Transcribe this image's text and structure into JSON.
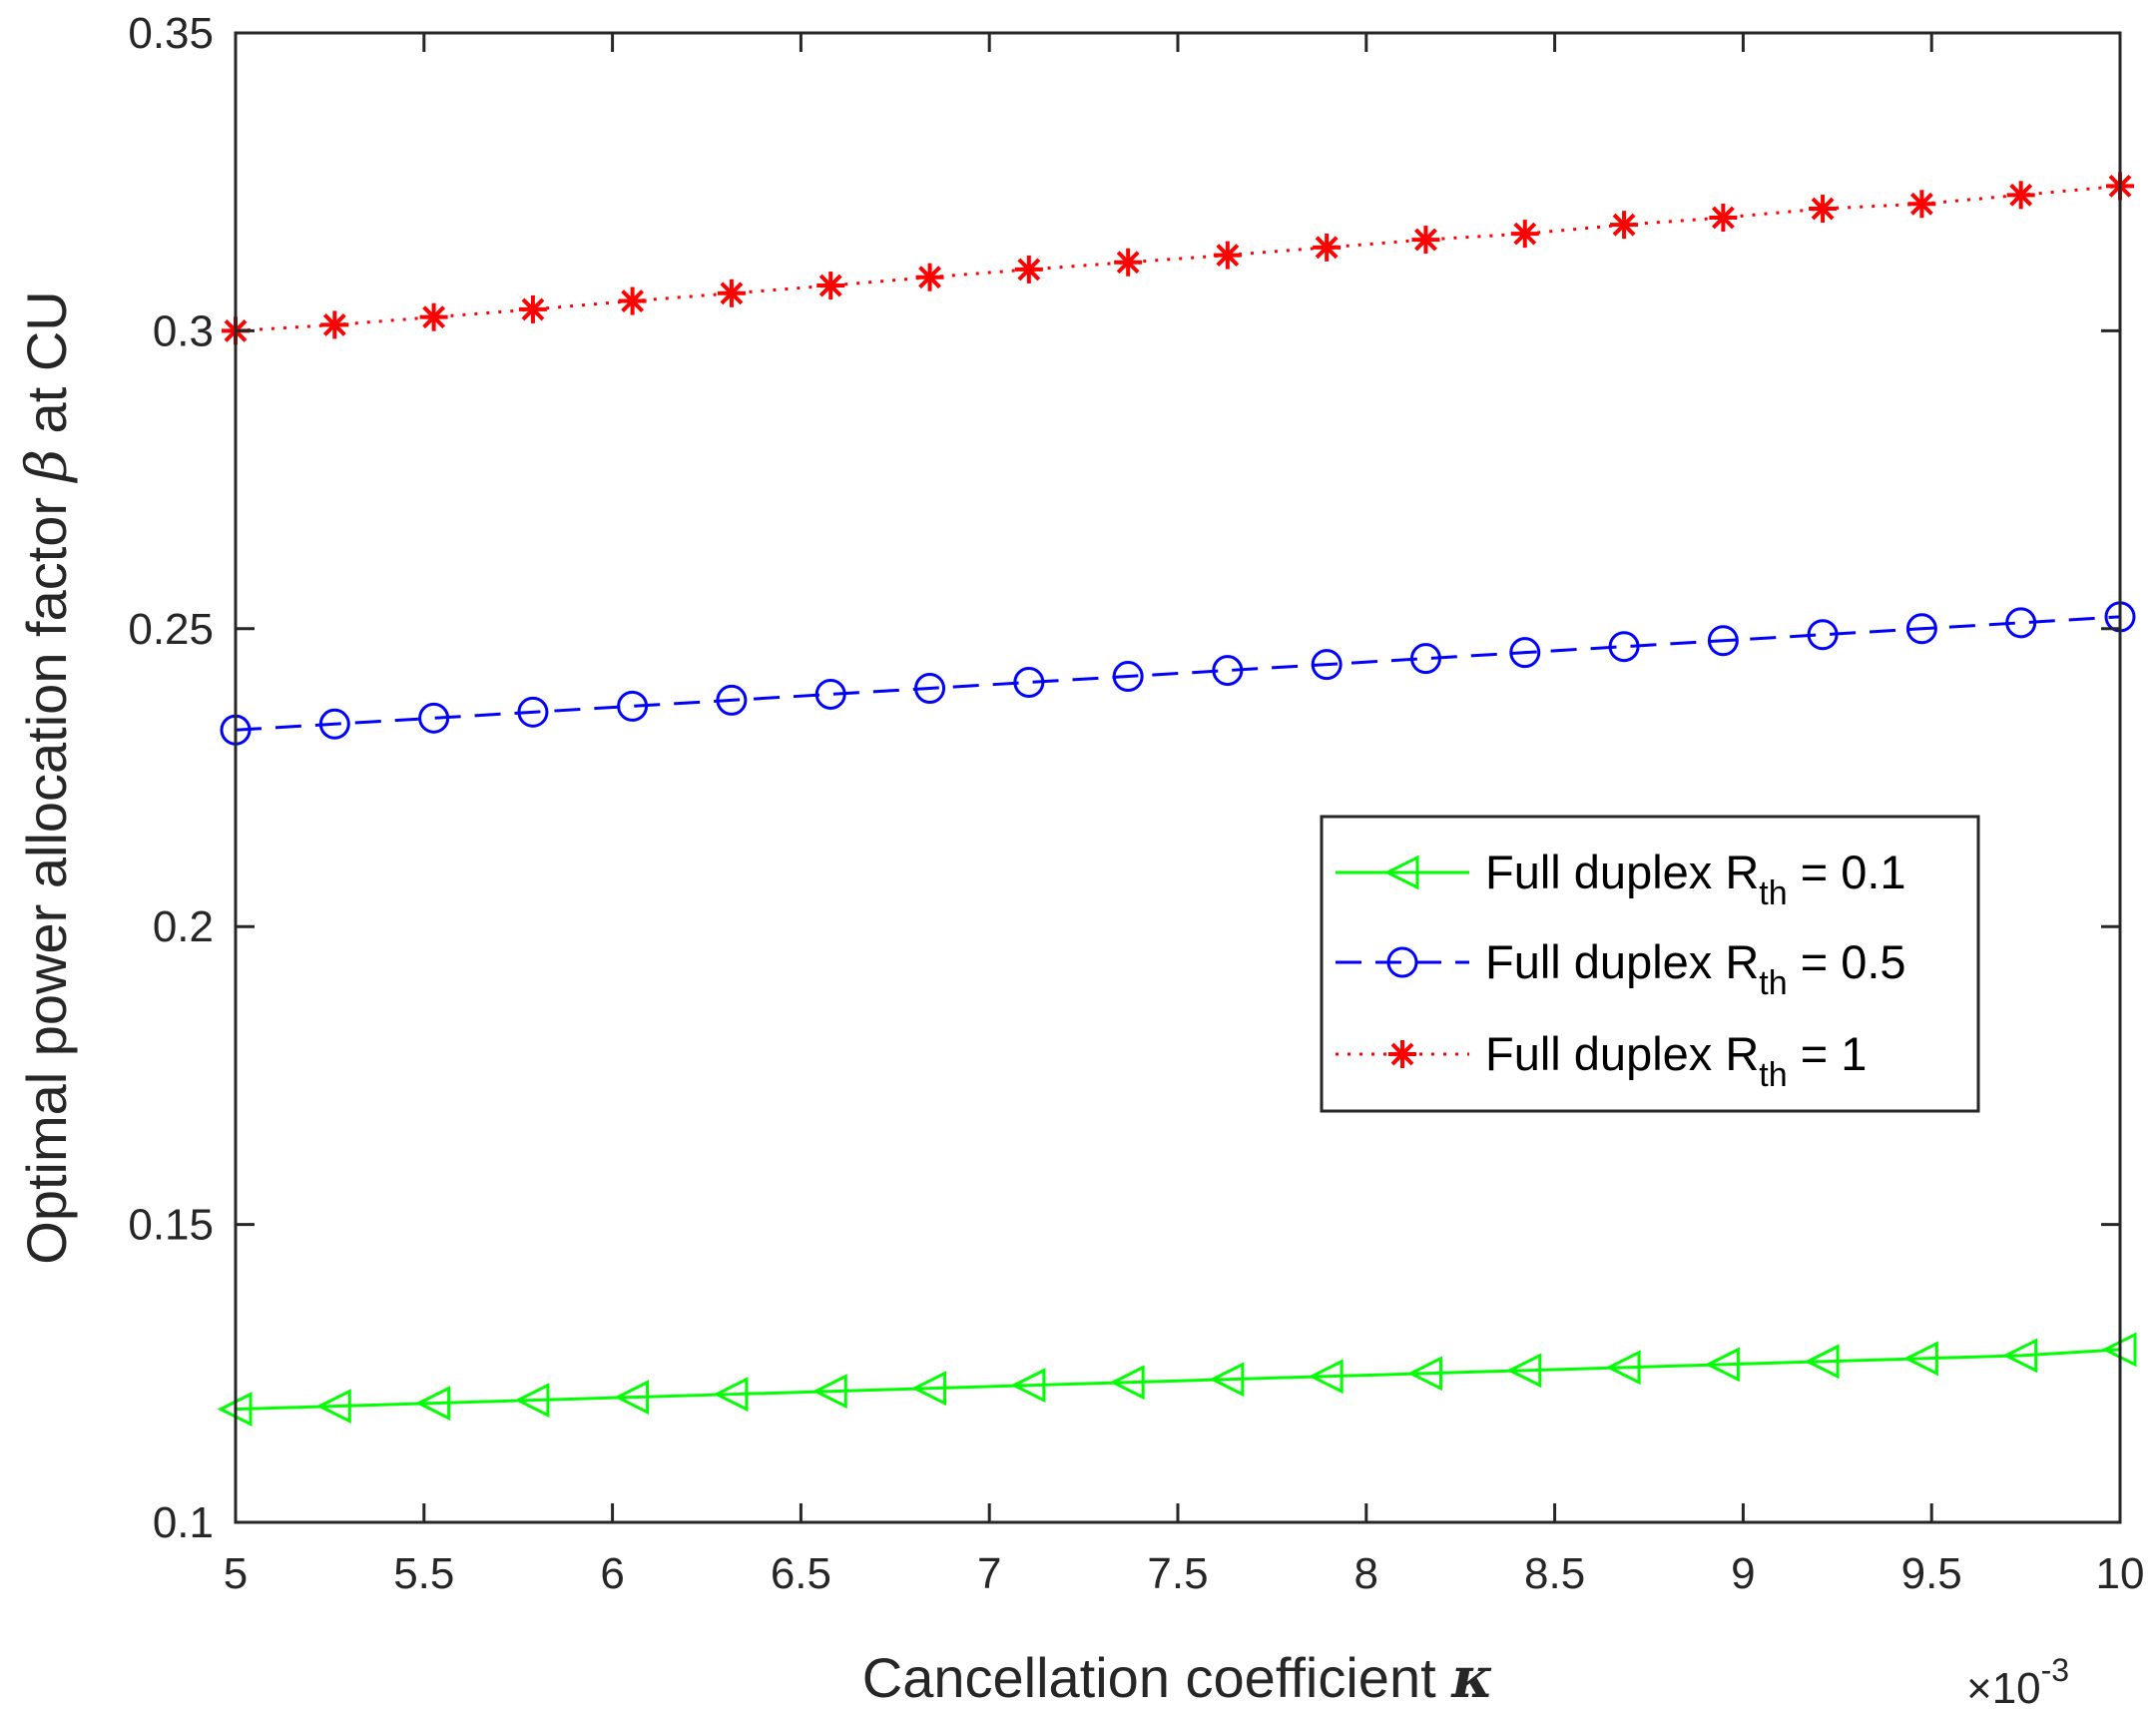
{
  "chart_data": {
    "type": "line",
    "title": "",
    "xlabel": {
      "text": "Cancellation coefficient",
      "symbol": "κ"
    },
    "ylabel": {
      "text_before": "Optimal power allocation factor",
      "symbol": "β",
      "text_after": "at CU"
    },
    "xlim": [
      5,
      10
    ],
    "ylim": [
      0.1,
      0.35
    ],
    "x_exponent": {
      "base": "×10",
      "power": "-3"
    },
    "xticks": [
      5,
      5.5,
      6,
      6.5,
      7,
      7.5,
      8,
      8.5,
      9,
      9.5,
      10
    ],
    "xtick_labels": [
      "5",
      "5.5",
      "6",
      "6.5",
      "7",
      "7.5",
      "8",
      "8.5",
      "9",
      "9.5",
      "10"
    ],
    "yticks": [
      0.1,
      0.15,
      0.2,
      0.25,
      0.3,
      0.35
    ],
    "ytick_labels": [
      "0.1",
      "0.15",
      "0.2",
      "0.25",
      "0.3",
      "0.35"
    ],
    "grid": false,
    "legend_position": "right-middle",
    "x": [
      5,
      5.263,
      5.526,
      5.789,
      6.053,
      6.316,
      6.579,
      6.842,
      7.105,
      7.368,
      7.632,
      7.895,
      8.158,
      8.421,
      8.684,
      8.947,
      9.211,
      9.474,
      9.737,
      10
    ],
    "series": [
      {
        "name": "Full duplex R_th = 0.1",
        "legend_prefix": "Full duplex R",
        "legend_sub": "th",
        "legend_suffix": " = 0.1",
        "color": "#00ff00",
        "line": "solid",
        "marker": "triangle-left",
        "values": [
          0.119,
          0.1195,
          0.12,
          0.1205,
          0.121,
          0.1215,
          0.122,
          0.1225,
          0.123,
          0.1235,
          0.124,
          0.1245,
          0.125,
          0.1255,
          0.126,
          0.1265,
          0.127,
          0.1275,
          0.128,
          0.129
        ]
      },
      {
        "name": "Full duplex R_th = 0.5",
        "legend_prefix": "Full duplex R",
        "legend_sub": "th",
        "legend_suffix": " = 0.5",
        "color": "#0000ff",
        "line": "dashed",
        "marker": "circle",
        "values": [
          0.233,
          0.234,
          0.235,
          0.236,
          0.237,
          0.238,
          0.239,
          0.24,
          0.241,
          0.242,
          0.243,
          0.244,
          0.245,
          0.246,
          0.247,
          0.248,
          0.249,
          0.25,
          0.251,
          0.252
        ]
      },
      {
        "name": "Full duplex R_th = 1",
        "legend_prefix": "Full duplex R",
        "legend_sub": "th",
        "legend_suffix": " = 1",
        "color": "#ff0000",
        "line": "dotted",
        "marker": "asterisk",
        "values": [
          0.3,
          0.301,
          0.3023,
          0.3036,
          0.305,
          0.3063,
          0.3076,
          0.309,
          0.3103,
          0.3115,
          0.3127,
          0.314,
          0.3153,
          0.3163,
          0.3178,
          0.319,
          0.3205,
          0.3213,
          0.3228,
          0.3243
        ]
      }
    ]
  }
}
